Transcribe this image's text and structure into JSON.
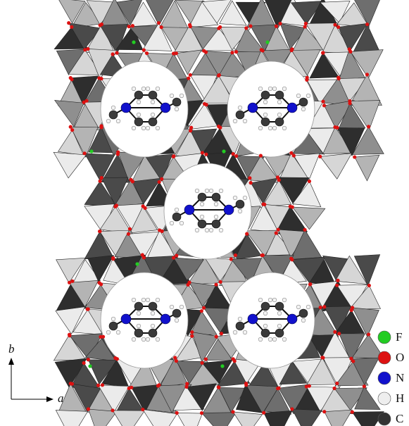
{
  "axes": {
    "vertical": "b",
    "horizontal": "a"
  },
  "legend": [
    {
      "label": "F",
      "color": "#22cc22"
    },
    {
      "label": "O",
      "color": "#dd1111"
    },
    {
      "label": "N",
      "color": "#1111cc"
    },
    {
      "label": "H",
      "color": "#eeeeee"
    },
    {
      "label": "C",
      "color": "#333333"
    }
  ]
}
